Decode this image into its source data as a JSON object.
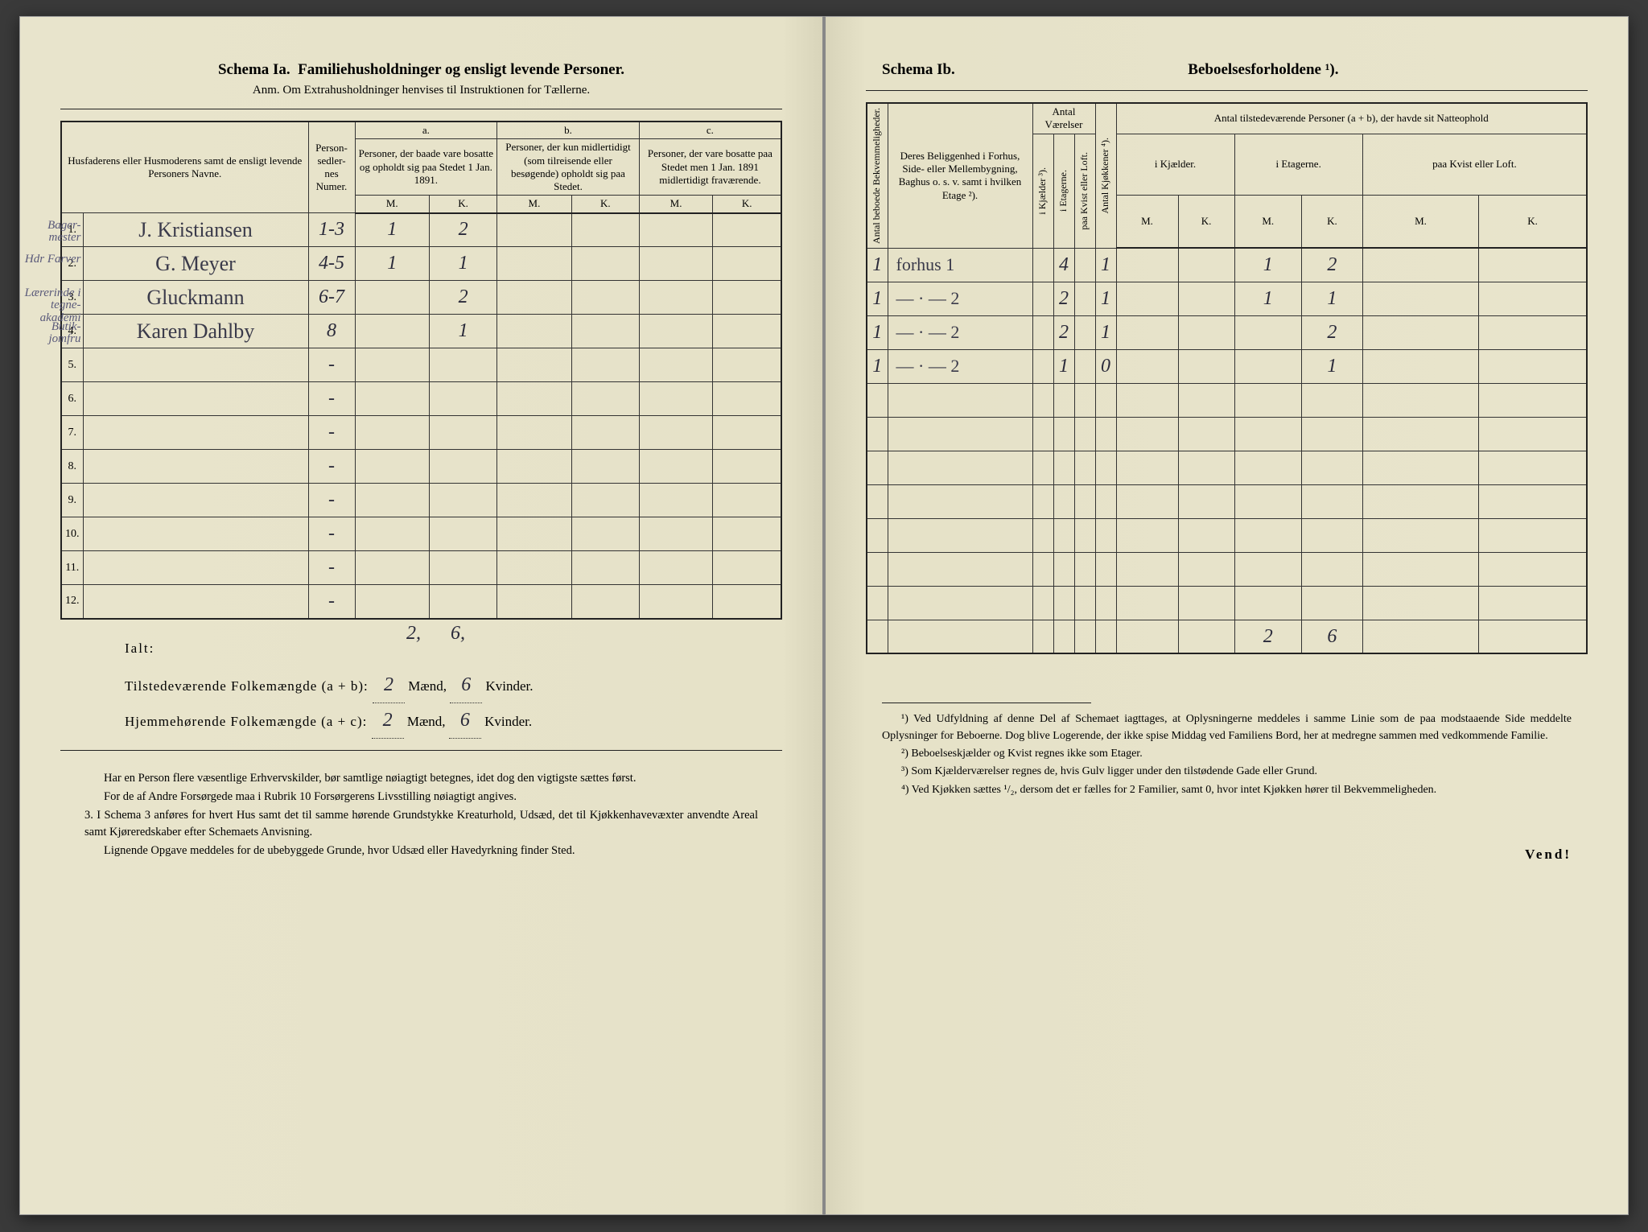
{
  "left": {
    "schema_label": "Schema Ia.",
    "schema_title": "Familiehusholdninger og ensligt levende Personer.",
    "anm": "Anm. Om Extrahusholdninger henvises til Instruktionen for Tællerne.",
    "head_names": "Husfaderens eller Husmoderens samt de ensligt levende Personers Navne.",
    "head_personsedler": "Person-sedler-nes Numer.",
    "col_a_label": "a.",
    "col_a_text": "Personer, der baade vare bosatte og opholdt sig paa Stedet 1 Jan. 1891.",
    "col_b_label": "b.",
    "col_b_text": "Personer, der kun midlertidigt (som tilreisende eller besøgende) opholdt sig paa Stedet.",
    "col_c_label": "c.",
    "col_c_text": "Personer, der vare bosatte paa Stedet men 1 Jan. 1891 midlertidigt fraværende.",
    "mk_m": "M.",
    "mk_k": "K.",
    "rows": [
      {
        "n": "1.",
        "margin": "Bager-mester",
        "name": "J. Kristiansen",
        "ps": "1-3",
        "aM": "1",
        "aK": "2"
      },
      {
        "n": "2.",
        "margin": "Hdr Farver",
        "name": "G. Meyer",
        "ps": "4-5",
        "aM": "1",
        "aK": "1"
      },
      {
        "n": "3.",
        "margin": "Lærerinde i tegne- akademi",
        "name": "Gluckmann",
        "ps": "6-7",
        "aM": "",
        "aK": "2"
      },
      {
        "n": "4.",
        "margin": "Butik-jomfru",
        "name": "Karen Dahlby",
        "ps": "8",
        "aM": "",
        "aK": "1"
      },
      {
        "n": "5.",
        "margin": "",
        "name": "",
        "ps": "-",
        "aM": "",
        "aK": ""
      },
      {
        "n": "6.",
        "margin": "",
        "name": "",
        "ps": "-",
        "aM": "",
        "aK": ""
      },
      {
        "n": "7.",
        "margin": "",
        "name": "",
        "ps": "-",
        "aM": "",
        "aK": ""
      },
      {
        "n": "8.",
        "margin": "",
        "name": "",
        "ps": "-",
        "aM": "",
        "aK": ""
      },
      {
        "n": "9.",
        "margin": "",
        "name": "",
        "ps": "-",
        "aM": "",
        "aK": ""
      },
      {
        "n": "10.",
        "margin": "",
        "name": "",
        "ps": "-",
        "aM": "",
        "aK": ""
      },
      {
        "n": "11.",
        "margin": "",
        "name": "",
        "ps": "-",
        "aM": "",
        "aK": ""
      },
      {
        "n": "12.",
        "margin": "",
        "name": "",
        "ps": "-",
        "aM": "",
        "aK": ""
      }
    ],
    "sum_note_m": "2,",
    "sum_note_k": "6,",
    "ialt": "Ialt:",
    "tot1_label": "Tilstedeværende Folkemængde (a + b): ",
    "tot2_label": "Hjemmehørende Folkemængde (a + c): ",
    "tot_m": "2",
    "tot_k": "6",
    "maend": "Mænd,",
    "kvinder": "Kvinder.",
    "para1": "Har en Person flere væsentlige Erhvervskilder, bør samtlige nøiagtigt betegnes, idet dog den vigtigste sættes først.",
    "para2": "For de af Andre Forsørgede maa i Rubrik 10 Forsørgerens Livsstilling nøiagtigt angives.",
    "para3_lead": "3. I Schema 3",
    "para3": " anføres for hvert Hus samt det til samme hørende Grundstykke Kreaturhold, Udsæd, det til Kjøkkenhavevæxter anvendte Areal samt Kjøreredskaber efter Schemaets Anvisning.",
    "para4": "Lignende Opgave meddeles for de ubebyggede Grunde, hvor Udsæd eller Havedyrkning finder Sted."
  },
  "right": {
    "schema_label": "Schema Ib.",
    "schema_title": "Beboelsesforholdene ¹).",
    "h_bekvem": "Antal beboede Bekvemmeligheder.",
    "h_belig": "Deres Beliggenhed i Forhus, Side- eller Mellembygning, Baghus o. s. v. samt i hvilken Etage ²).",
    "h_antalv": "Antal Værelser",
    "h_kjaelder": "i Kjælder ³).",
    "h_etagerne": "i Etagerne.",
    "h_kvistloft": "paa Kvist eller Loft.",
    "h_kjokkener": "Antal Kjøkkener ⁴).",
    "h_tilstede": "Antal tilstedeværende Personer (a + b), der havde sit Natteophold",
    "h_ikjaelder": "i Kjælder.",
    "h_ietagerne": "i Etagerne.",
    "h_paakvist": "paa Kvist eller Loft.",
    "mk_m": "M.",
    "mk_k": "K.",
    "rows": [
      {
        "bek": "1",
        "belig": "forhus 1",
        "kj": "",
        "et": "4",
        "kv": "",
        "kk": "1",
        "kjM": "",
        "kjK": "",
        "etM": "1",
        "etK": "2",
        "kvM": "",
        "kvK": ""
      },
      {
        "bek": "1",
        "belig": "— · — 2",
        "kj": "",
        "et": "2",
        "kv": "",
        "kk": "1",
        "kjM": "",
        "kjK": "",
        "etM": "1",
        "etK": "1",
        "kvM": "",
        "kvK": ""
      },
      {
        "bek": "1",
        "belig": "— · — 2",
        "kj": "",
        "et": "2",
        "kv": "",
        "kk": "1",
        "kjM": "",
        "kjK": "",
        "etM": "",
        "etK": "2",
        "kvM": "",
        "kvK": ""
      },
      {
        "bek": "1",
        "belig": "— · — 2",
        "kj": "",
        "et": "1",
        "kv": "",
        "kk": "0",
        "kjM": "",
        "kjK": "",
        "etM": "",
        "etK": "1",
        "kvM": "",
        "kvK": ""
      }
    ],
    "blank_rows": 7,
    "bottom_row": {
      "etM": "2",
      "etK": "6"
    },
    "fn1": "¹) Ved Udfyldning af denne Del af Schemaet iagttages, at Oplysningerne meddeles i samme Linie som de paa modstaaende Side meddelte Oplysninger for Beboerne. Dog blive Logerende, der ikke spise Middag ved Familiens Bord, her at medregne sammen med vedkommende Familie.",
    "fn2": "²) Beboelseskjælder og Kvist regnes ikke som Etager.",
    "fn3": "³) Som Kjælderværelser regnes de, hvis Gulv ligger under den tilstødende Gade eller Grund.",
    "fn4": "⁴) Ved Kjøkken sættes ¹/₂, dersom det er fælles for 2 Familier, samt 0, hvor intet Kjøkken hører til Bekvemmeligheden.",
    "vend": "Vend!"
  },
  "colors": {
    "paper": "#e8e4cc",
    "ink": "#222222",
    "handwriting": "#3a3a4a"
  }
}
